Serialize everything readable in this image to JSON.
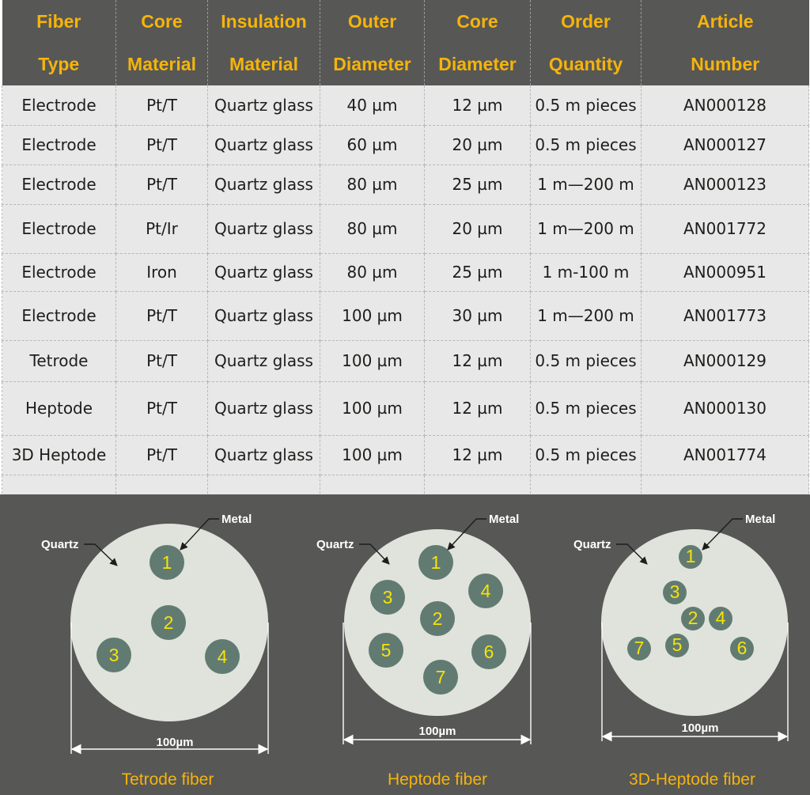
{
  "table": {
    "headers": [
      [
        "Fiber",
        "Type"
      ],
      [
        "Core",
        "Material"
      ],
      [
        "Insulation",
        "Material"
      ],
      [
        "Outer",
        "Diameter"
      ],
      [
        "Core",
        "Diameter"
      ],
      [
        "Order",
        "Quantity"
      ],
      [
        "Article",
        "Number"
      ]
    ],
    "rows": [
      [
        "Electrode",
        "Pt/T",
        "Quartz glass",
        "40 µm",
        "12 µm",
        "0.5 m pieces",
        "AN000128"
      ],
      [
        "Electrode",
        "Pt/T",
        "Quartz glass",
        "60 µm",
        "20 µm",
        "0.5 m pieces",
        "AN000127"
      ],
      [
        "Electrode",
        "Pt/T",
        "Quartz glass",
        "80 µm",
        "25 µm",
        "1 m—200 m",
        "AN000123"
      ],
      [
        "Electrode",
        "Pt/Ir",
        "Quartz glass",
        "80 µm",
        "20 µm",
        "1 m—200 m",
        "AN001772"
      ],
      [
        "Electrode",
        "Iron",
        "Quartz glass",
        "80 µm",
        "25 µm",
        "1 m-100 m",
        "AN000951"
      ],
      [
        "Electrode",
        "Pt/T",
        "Quartz glass",
        "100 µm",
        "30 µm",
        "1 m—200 m",
        "AN001773"
      ],
      [
        "Tetrode",
        "Pt/T",
        "Quartz glass",
        "100 µm",
        "12 µm",
        "0.5 m pieces",
        "AN000129"
      ],
      [
        "Heptode",
        "Pt/T",
        "Quartz glass",
        "100 µm",
        "12 µm",
        "0.5 m pieces",
        "AN000130"
      ],
      [
        "3D Heptode",
        "Pt/T",
        "Quartz glass",
        "100 µm",
        "12 µm",
        "0.5 m pieces",
        "AN001774"
      ]
    ]
  },
  "diagrams": [
    {
      "caption": "Tetrode fiber",
      "quartz_label": "Quartz",
      "metal_label": "Metal",
      "scale_label": "100µm",
      "cores": [
        "1",
        "2",
        "3",
        "4"
      ]
    },
    {
      "caption": "Heptode fiber",
      "quartz_label": "Quartz",
      "metal_label": "Metal",
      "scale_label": "100µm",
      "cores": [
        "1",
        "2",
        "3",
        "4",
        "5",
        "6",
        "7"
      ]
    },
    {
      "caption": "3D-Heptode fiber",
      "quartz_label": "Quartz",
      "metal_label": "Metal",
      "scale_label": "100µm",
      "cores": [
        "1",
        "2",
        "3",
        "4",
        "5",
        "6",
        "7"
      ]
    }
  ],
  "colors": {
    "header_bg": "#575756",
    "header_text": "#f5b40a",
    "row_bg": "#e8e8e8",
    "panel_bg": "#575756",
    "fiber_fill": "#dfe3dc",
    "core_fill": "#627b72",
    "core_text": "#f5e30a",
    "caption_text": "#f5b40a"
  }
}
